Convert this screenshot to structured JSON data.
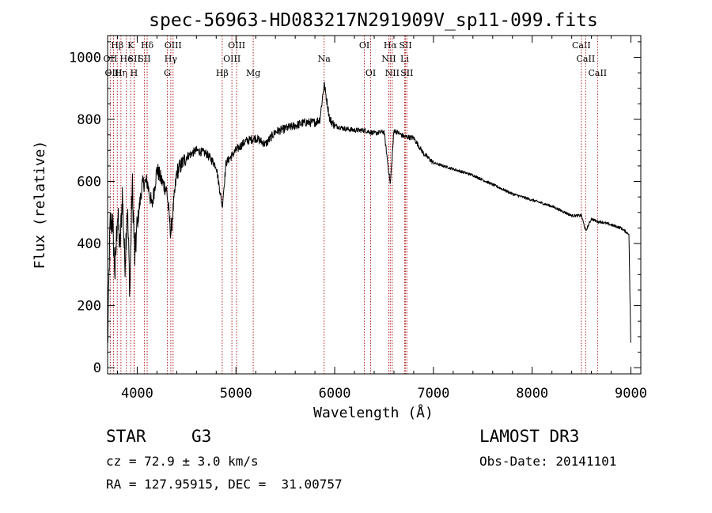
{
  "chart_data": {
    "type": "line",
    "title": "spec-56963-HD083217N291909V_sp11-099.fits",
    "xlabel": "Wavelength (Å)",
    "ylabel": "Flux (relative)",
    "xlim": [
      3700,
      9100
    ],
    "ylim": [
      -20,
      1070
    ],
    "xticks": [
      4000,
      5000,
      6000,
      7000,
      8000,
      9000
    ],
    "yticks": [
      0,
      200,
      400,
      600,
      800,
      1000
    ],
    "series": [
      {
        "name": "flux",
        "x": [
          3700,
          3725,
          3750,
          3775,
          3800,
          3825,
          3850,
          3875,
          3900,
          3925,
          3950,
          3975,
          4000,
          4050,
          4100,
          4150,
          4200,
          4250,
          4300,
          4340,
          4400,
          4500,
          4600,
          4700,
          4800,
          4861,
          4900,
          5000,
          5100,
          5200,
          5300,
          5400,
          5500,
          5600,
          5700,
          5800,
          5850,
          5893,
          5950,
          6000,
          6100,
          6200,
          6300,
          6400,
          6500,
          6563,
          6600,
          6700,
          6800,
          6900,
          7000,
          7200,
          7400,
          7600,
          7800,
          8000,
          8200,
          8400,
          8500,
          8542,
          8600,
          8662,
          8700,
          8800,
          8900,
          8980,
          9000
        ],
        "y": [
          60,
          460,
          470,
          300,
          500,
          380,
          560,
          330,
          520,
          250,
          600,
          350,
          460,
          590,
          600,
          520,
          640,
          600,
          570,
          430,
          630,
          680,
          700,
          690,
          650,
          520,
          660,
          700,
          730,
          740,
          720,
          760,
          770,
          780,
          790,
          790,
          800,
          915,
          800,
          780,
          770,
          765,
          765,
          755,
          760,
          590,
          765,
          745,
          740,
          690,
          660,
          640,
          620,
          590,
          560,
          540,
          520,
          490,
          490,
          440,
          480,
          470,
          470,
          460,
          450,
          430,
          40
        ]
      }
    ],
    "line_markers": [
      {
        "label": "Hβ",
        "x": 3798,
        "row": 1
      },
      {
        "label": "OII",
        "x": 3727,
        "row": 2
      },
      {
        "label": "OIII",
        "x": 3760,
        "row": 3
      },
      {
        "label": "Hη",
        "x": 3835,
        "row": 3
      },
      {
        "label": "He",
        "x": 3889,
        "row": 2
      },
      {
        "label": "K",
        "x": 3934,
        "row": 1
      },
      {
        "label": "SII",
        "x": 3970,
        "row": 2
      },
      {
        "label": "H",
        "x": 3968,
        "row": 3
      },
      {
        "label": "Hδ",
        "x": 4101,
        "row": 1
      },
      {
        "label": "SII",
        "x": 4072,
        "row": 2
      },
      {
        "label": "OIII",
        "x": 4363,
        "row": 1
      },
      {
        "label": "Hγ",
        "x": 4340,
        "row": 2
      },
      {
        "label": "G",
        "x": 4305,
        "row": 3
      },
      {
        "label": "Hβ",
        "x": 4861,
        "row": 3
      },
      {
        "label": "OIII",
        "x": 5007,
        "row": 1
      },
      {
        "label": "OIII",
        "x": 4959,
        "row": 2
      },
      {
        "label": "Mg",
        "x": 5175,
        "row": 3
      },
      {
        "label": "Na",
        "x": 5893,
        "row": 2
      },
      {
        "label": "OI",
        "x": 6300,
        "row": 1
      },
      {
        "label": "OI",
        "x": 6364,
        "row": 3
      },
      {
        "label": "Hα",
        "x": 6563,
        "row": 1
      },
      {
        "label": "NII",
        "x": 6548,
        "row": 2
      },
      {
        "label": "NII",
        "x": 6583,
        "row": 3
      },
      {
        "label": "SII",
        "x": 6717,
        "row": 1
      },
      {
        "label": "Li",
        "x": 6708,
        "row": 2
      },
      {
        "label": "SII",
        "x": 6731,
        "row": 3
      },
      {
        "label": "CaII",
        "x": 8498,
        "row": 1
      },
      {
        "label": "CaII",
        "x": 8542,
        "row": 2
      },
      {
        "label": "CaII",
        "x": 8662,
        "row": 3
      }
    ]
  },
  "info": {
    "object_class": "STAR",
    "subclass": "G3",
    "survey": "LAMOST DR3",
    "cz": "cz = 72.9 ± 3.0 km/s",
    "obs_date": "Obs-Date: 20141101",
    "coords": "RA = 127.95915, DEC =  31.00757"
  }
}
